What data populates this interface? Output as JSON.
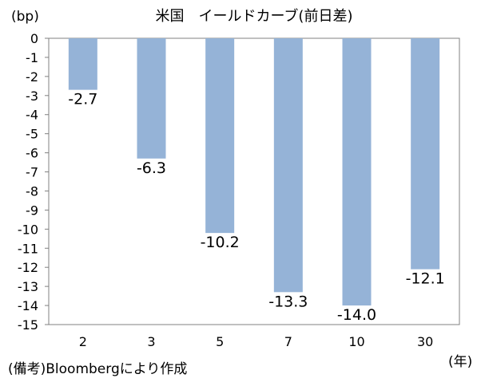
{
  "chart_data": {
    "type": "bar",
    "title": "米国　イールドカーブ(前日差)",
    "ylabel": "(bp)",
    "xlabel": "(年)",
    "categories": [
      "2",
      "3",
      "5",
      "7",
      "10",
      "30"
    ],
    "values": [
      -2.7,
      -6.3,
      -10.2,
      -13.3,
      -14.0,
      -12.1
    ],
    "value_labels": [
      "-2.7",
      "-6.3",
      "-10.2",
      "-13.3",
      "-14.0",
      "-12.1"
    ],
    "ylim": [
      -15,
      0
    ],
    "yticks": [
      0,
      -1,
      -2,
      -3,
      -4,
      -5,
      -6,
      -7,
      -8,
      -9,
      -10,
      -11,
      -12,
      -13,
      -14,
      -15
    ],
    "bar_color": "#95B3D7",
    "grid": false,
    "legend": "none"
  },
  "source_note": "(備考)Bloombergにより作成"
}
